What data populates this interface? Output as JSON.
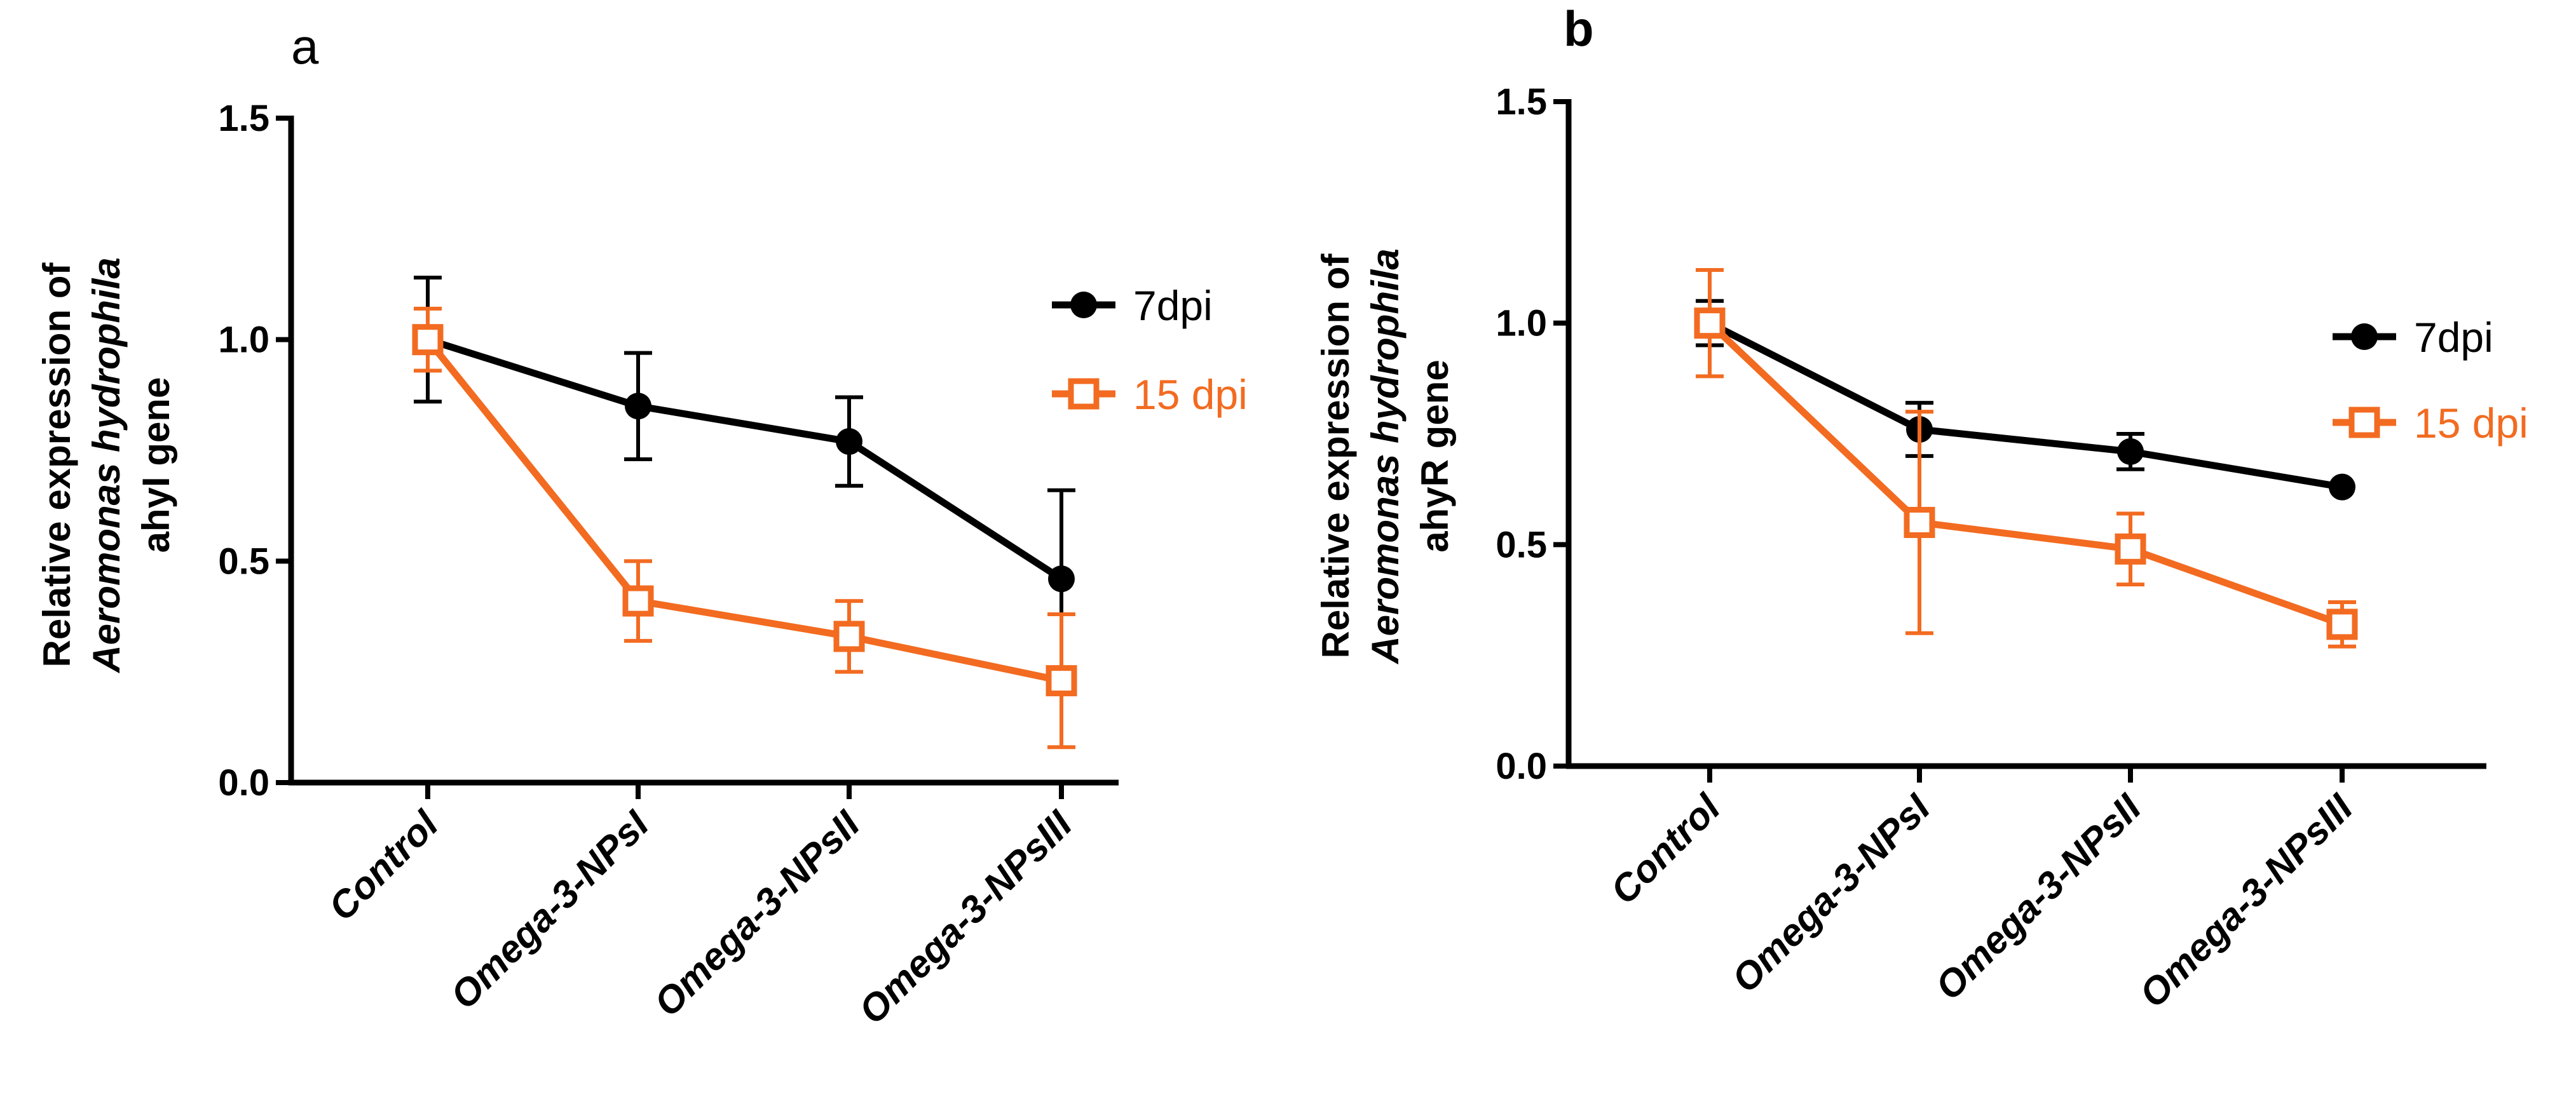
{
  "chart_data": [
    {
      "panel_label": "a",
      "type": "line",
      "categories": [
        "Control",
        "Omega-3-NPsI",
        "Omega-3-NPsII",
        "Omega-3-NPsIII"
      ],
      "ylabel_lines": [
        "Relative expression of",
        "Aeromonas hydrophila",
        "ahyI gene"
      ],
      "ylim": [
        0,
        1.5
      ],
      "yticks": [
        "0.0",
        "0.5",
        "1.0",
        "1.5"
      ],
      "legend_position": "top-right",
      "series": [
        {
          "name": "7dpi",
          "marker": "filled-circle",
          "color": "#000000",
          "values": [
            1.0,
            0.85,
            0.77,
            0.46
          ],
          "errors": [
            0.14,
            0.12,
            0.1,
            0.2
          ]
        },
        {
          "name": "15 dpi",
          "marker": "open-square",
          "color": "#f26b21",
          "values": [
            1.0,
            0.41,
            0.33,
            0.23
          ],
          "errors": [
            0.07,
            0.09,
            0.08,
            0.15
          ]
        }
      ]
    },
    {
      "panel_label": "b",
      "type": "line",
      "categories": [
        "Control",
        "Omega-3-NPsI",
        "Omega-3-NPsII",
        "Omega-3-NPsIII"
      ],
      "ylabel_lines": [
        "Relative expression of",
        "Aeromonas hydrophila",
        "ahyR gene"
      ],
      "ylim": [
        0,
        1.5
      ],
      "yticks": [
        "0.0",
        "0.5",
        "1.0",
        "1.5"
      ],
      "legend_position": "top-right",
      "series": [
        {
          "name": "7dpi",
          "marker": "filled-circle",
          "color": "#000000",
          "values": [
            1.0,
            0.76,
            0.71,
            0.63
          ],
          "errors": [
            0.05,
            0.06,
            0.04,
            0.0
          ]
        },
        {
          "name": "15 dpi",
          "marker": "open-square",
          "color": "#f26b21",
          "values": [
            1.0,
            0.55,
            0.49,
            0.32
          ],
          "errors": [
            0.12,
            0.25,
            0.08,
            0.05
          ]
        }
      ]
    }
  ]
}
